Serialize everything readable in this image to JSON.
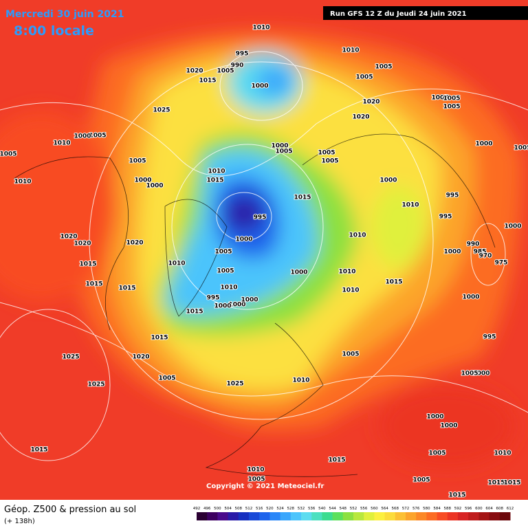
{
  "header": {
    "date": "Mercredi 30 juin 2021",
    "time": "8:00 locale",
    "run": "Run GFS 12 Z du Jeudi 24 juin 2021"
  },
  "footer": {
    "title": "Géop. Z500 & pression au sol",
    "lead": "(+ 138h)",
    "copyright": "Copyright © 2021 Meteociel.fr"
  },
  "legend": {
    "ticks": [
      492,
      496,
      500,
      504,
      508,
      512,
      516,
      520,
      524,
      528,
      532,
      536,
      540,
      544,
      548,
      552,
      556,
      560,
      564,
      568,
      572,
      576,
      580,
      584,
      588,
      592,
      596,
      600,
      604,
      608,
      612
    ],
    "colors": [
      "#2b0033",
      "#3d0060",
      "#4a0a8c",
      "#2a1aa8",
      "#1730c0",
      "#1a4ad8",
      "#1e64ec",
      "#2a86f8",
      "#3aa6fc",
      "#4cc4fc",
      "#5cdcf0",
      "#4ce0c0",
      "#3cdc90",
      "#5ce05c",
      "#8ce040",
      "#b8e83c",
      "#e0f03c",
      "#fcf040",
      "#fcdc3c",
      "#fcc034",
      "#fca42c",
      "#fc8828",
      "#fc6c24",
      "#f84c24",
      "#ec3424",
      "#d82424",
      "#c01c1c",
      "#a41414",
      "#880c10",
      "#6c080c"
    ]
  },
  "pressure_labels": [
    1010,
    1010,
    995,
    990,
    1020,
    1005,
    1015,
    1000,
    1005,
    1005,
    1020,
    1020,
    1005,
    1005,
    1005,
    1025,
    1005,
    1000,
    1010,
    1005,
    1005,
    1000,
    1005,
    1005,
    1005,
    1000,
    1005,
    1010,
    1015,
    1000,
    1010,
    1000,
    1000,
    1015,
    995,
    1010,
    995,
    995,
    1000,
    1020,
    1020,
    1020,
    1000,
    1010,
    990,
    1000,
    985,
    970,
    1005,
    1010,
    1015,
    975,
    1000,
    1010,
    1015,
    1005,
    1015,
    1010,
    1015,
    1010,
    995,
    1000,
    1000,
    1000,
    1015,
    1000,
    1015,
    995,
    1005,
    1020,
    1025,
    1000,
    1005,
    1005,
    1010,
    1025,
    1025,
    1000,
    1000,
    1015,
    1015,
    1005,
    1010,
    1010,
    1005,
    1005,
    1015,
    1015,
    1015
  ]
}
